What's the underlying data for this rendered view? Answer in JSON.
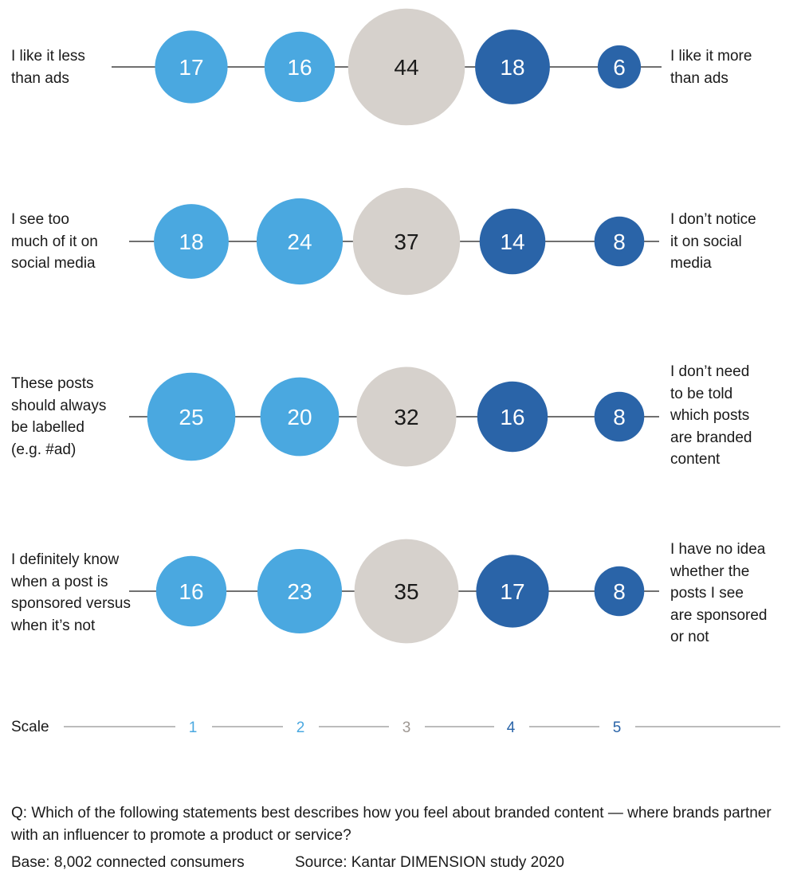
{
  "chart_data": {
    "type": "bubble-scale",
    "scale_label": "Scale",
    "scale": [
      "1",
      "2",
      "3",
      "4",
      "5"
    ],
    "colors": {
      "1": "#4aa8e0",
      "2": "#4aa8e0",
      "3": "#d6d1cc",
      "4": "#2a64a8",
      "5": "#2a64a8"
    },
    "scale_text_colors": {
      "1": "#4aa8e0",
      "2": "#4aa8e0",
      "3": "#9e9893",
      "4": "#2a64a8",
      "5": "#2a64a8"
    },
    "rows": [
      {
        "left": "I like it less\nthan ads",
        "right": "I like it more\nthan ads",
        "values": [
          17,
          16,
          44,
          18,
          6
        ]
      },
      {
        "left": "I see too\nmuch of it on\nsocial media",
        "right": "I don’t notice\nit on social\nmedia",
        "values": [
          18,
          24,
          37,
          14,
          8
        ]
      },
      {
        "left": "These posts\nshould always\nbe labelled\n(e.g. #ad)",
        "right": "I don’t need\nto be told\nwhich posts\nare branded\ncontent",
        "values": [
          25,
          20,
          32,
          16,
          8
        ]
      },
      {
        "left": "I definitely know\nwhen a post is\nsponsored versus\nwhen it’s not",
        "right": "I have no idea\nwhether the\nposts I see\nare sponsored\nor not",
        "values": [
          16,
          23,
          35,
          17,
          8
        ]
      }
    ]
  },
  "footer": {
    "question": "Q: Which of the following statements best describes how you feel about branded content — where brands partner with an influencer to promote a product or service?",
    "base": "Base: 8,002 connected consumers",
    "source": "Source: Kantar DIMENSION study 2020"
  }
}
